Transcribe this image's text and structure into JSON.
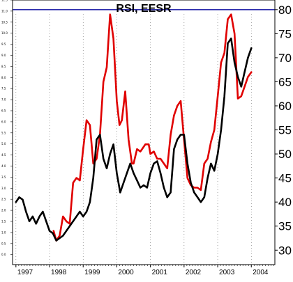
{
  "chart_data": {
    "type": "line",
    "title": "RSI, EESR",
    "xlabel": "",
    "ylabel": "",
    "x_ticks": [
      "1997",
      "1998",
      "1999",
      "2000",
      "2001",
      "2002",
      "2003",
      "2004"
    ],
    "right_axis": {
      "ylim": [
        27,
        82
      ],
      "tick_labels": [
        "30",
        "35",
        "40",
        "45",
        "50",
        "55",
        "60",
        "65",
        "70",
        "75",
        "80"
      ],
      "tick_values": [
        30,
        35,
        40,
        45,
        50,
        55,
        60,
        65,
        70,
        75,
        80
      ]
    },
    "left_axis": {
      "ylim": [
        -0.45,
        11.5
      ],
      "tick_labels": [
        "-0.5",
        "0.0",
        "0.5",
        "1.0",
        "1.5",
        "2.0",
        "2.5",
        "3.0",
        "3.5",
        "4.0",
        "4.5",
        "5.0",
        "5.5",
        "6.0",
        "6.5",
        "7.0",
        "7.5",
        "8.0",
        "8.5",
        "9.0",
        "9.5",
        "10.0",
        "10.5",
        "11.0",
        "11.5"
      ],
      "tick_values": [
        -0.5,
        0,
        0.5,
        1,
        1.5,
        2,
        2.5,
        3,
        3.5,
        4,
        4.5,
        5,
        5.5,
        6,
        6.5,
        7,
        7.5,
        8,
        8.5,
        9,
        9.5,
        10,
        10.5,
        11,
        11.5
      ]
    },
    "x_range": [
      1996.9,
      2004.7
    ],
    "reference_line": {
      "value": 80,
      "color": "#1010a0"
    },
    "grid": "vertical dotted at year boundaries",
    "series": [
      {
        "color": "#e00000",
        "axis": "right",
        "x": [
          1998.12,
          1998.2,
          1998.3,
          1998.4,
          1998.5,
          1998.6,
          1998.7,
          1998.8,
          1998.9,
          1999.0,
          1999.1,
          1999.2,
          1999.3,
          1999.4,
          1999.5,
          1999.6,
          1999.7,
          1999.8,
          1999.9,
          2000.0,
          2000.08,
          2000.15,
          2000.25,
          2000.35,
          2000.45,
          2000.5,
          2000.6,
          2000.7,
          2000.75,
          2000.85,
          2000.95,
          2001.0,
          2001.1,
          2001.2,
          2001.3,
          2001.4,
          2001.5,
          2001.6,
          2001.7,
          2001.8,
          2001.9,
          2002.0,
          2002.1,
          2002.2,
          2002.3,
          2002.4,
          2002.5,
          2002.6,
          2002.7,
          2002.8,
          2002.9,
          2003.0,
          2003.1,
          2003.2,
          2003.3,
          2003.4,
          2003.5,
          2003.6,
          2003.7,
          2003.8,
          2003.9,
          2004.0
        ],
        "y": [
          34,
          32,
          33,
          37,
          36,
          35.5,
          44,
          45,
          44.5,
          51,
          57,
          56,
          48,
          49,
          54,
          65,
          68,
          79,
          74,
          61,
          56,
          57,
          63,
          53,
          48,
          48,
          51,
          50.5,
          51,
          52,
          52,
          50,
          50.5,
          49,
          49,
          48,
          47,
          54,
          58,
          60,
          61,
          53,
          45,
          43.5,
          43,
          43,
          42.5,
          48,
          49,
          52.5,
          55,
          62,
          69,
          71,
          78,
          79,
          75,
          61.5,
          62,
          64,
          66,
          67
        ]
      },
      {
        "color": "#000000",
        "axis": "right",
        "x": [
          1997.0,
          1997.1,
          1997.2,
          1997.3,
          1997.4,
          1997.5,
          1997.6,
          1997.7,
          1997.8,
          1997.9,
          1998.0,
          1998.1,
          1998.2,
          1998.3,
          1998.4,
          1998.5,
          1998.6,
          1998.7,
          1998.8,
          1998.9,
          1999.0,
          1999.1,
          1999.2,
          1999.3,
          1999.4,
          1999.5,
          1999.6,
          1999.7,
          1999.8,
          1999.9,
          2000.0,
          2000.1,
          2000.2,
          2000.3,
          2000.4,
          2000.5,
          2000.6,
          2000.7,
          2000.8,
          2000.9,
          2001.0,
          2001.1,
          2001.2,
          2001.3,
          2001.4,
          2001.5,
          2001.6,
          2001.7,
          2001.8,
          2001.9,
          2002.0,
          2002.1,
          2002.2,
          2002.3,
          2002.4,
          2002.5,
          2002.6,
          2002.7,
          2002.8,
          2002.9,
          2003.0,
          2003.1,
          2003.2,
          2003.3,
          2003.4,
          2003.5,
          2003.6,
          2003.7,
          2003.8,
          2003.9,
          2004.0
        ],
        "y": [
          40,
          41,
          40.5,
          38,
          36,
          37,
          35.5,
          37,
          38,
          36,
          34,
          33.5,
          32,
          32.5,
          33,
          34,
          35,
          36,
          37,
          38,
          37,
          38,
          40,
          45,
          53,
          54,
          49,
          47,
          50,
          52,
          46,
          42,
          44,
          46,
          48,
          46,
          44.5,
          43,
          43.5,
          43,
          46,
          48,
          48.5,
          46,
          43,
          41,
          42,
          51,
          53,
          54,
          54,
          48,
          44,
          42,
          41,
          40,
          41,
          45,
          48,
          46.5,
          50,
          55,
          62,
          73,
          74,
          69,
          66,
          64,
          67,
          70,
          72
        ]
      }
    ]
  }
}
